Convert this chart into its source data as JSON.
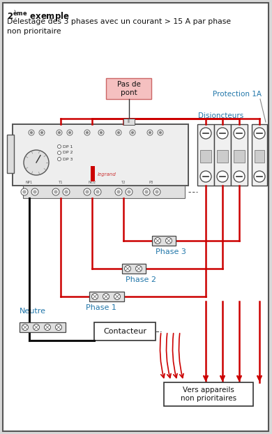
{
  "bg_color": "#d8d8d8",
  "inner_bg": "#ffffff",
  "border_color": "#444444",
  "red": "#cc0000",
  "black": "#111111",
  "label_color": "#2277aa",
  "pas_de_pont_bg": "#f5c0c0",
  "pas_de_pont_label": "Pas de\npont",
  "protection_label": "Protection 1A",
  "disjoncteurs_label": "Disjoncteurs",
  "phase1_label": "Phase 1",
  "phase2_label": "Phase 2",
  "phase3_label": "Phase 3",
  "neutre_label": "Neutre",
  "contacteur_label": "Contacteur",
  "vers_label": "Vers appareils\nnon prioritaires",
  "subtitle": "Délestage des 3 phases avec un courant > 15 A par phase\nnon prioritaire"
}
